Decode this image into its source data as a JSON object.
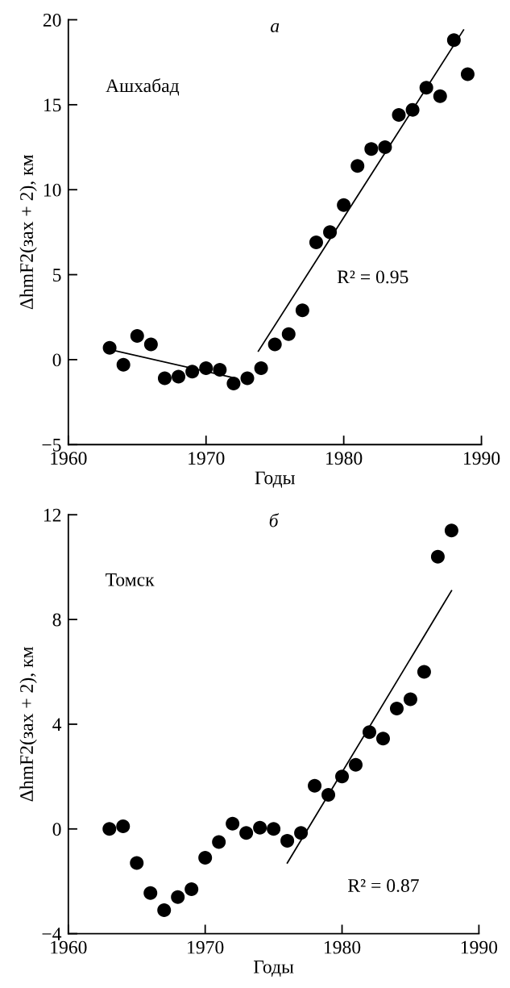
{
  "chart_data": [
    {
      "type": "scatter",
      "title": "а",
      "xlabel": "Годы",
      "ylabel": "ΔhmF2(зах + 2), км",
      "annotations": [
        "Ашхабад",
        "R² = 0.95"
      ],
      "xlim": [
        1960,
        1990
      ],
      "xticks": [
        1960,
        1970,
        1980,
        1990
      ],
      "ylim": [
        -5,
        20
      ],
      "yticks": [
        {
          "value": -5,
          "label": "−5"
        },
        0,
        5,
        10,
        15,
        20
      ],
      "grid": false,
      "legend": false,
      "series": [
        {
          "marker": "circle",
          "color": "#000000",
          "x": [
            1963,
            1964,
            1965,
            1966,
            1967,
            1968,
            1969,
            1970,
            1971,
            1972,
            1973,
            1974,
            1975,
            1976,
            1977,
            1978,
            1979,
            1980,
            1981,
            1982,
            1983,
            1984,
            1985,
            1986,
            1987,
            1988,
            1989
          ],
          "values": [
            0.7,
            -0.3,
            1.4,
            0.9,
            -1.1,
            -1.0,
            -0.7,
            -0.5,
            -0.6,
            -1.4,
            -1.1,
            -0.5,
            0.9,
            1.5,
            2.9,
            6.9,
            7.5,
            9.1,
            11.4,
            12.4,
            12.5,
            14.4,
            14.7,
            16.0,
            15.5,
            18.8,
            16.8
          ]
        },
        {
          "type": "line",
          "marker": "none",
          "color": "#000000",
          "x": [
            1963,
            1972.2
          ],
          "values": [
            0.6,
            -1.1
          ]
        },
        {
          "type": "line",
          "marker": "none",
          "color": "#000000",
          "x": [
            1973.8,
            1988.7
          ],
          "values": [
            0.5,
            19.4
          ]
        }
      ]
    },
    {
      "type": "scatter",
      "title": "б",
      "xlabel": "Годы",
      "ylabel": "ΔhmF2(зах + 2), км",
      "annotations": [
        "Томск",
        "R² = 0.87"
      ],
      "xlim": [
        1960,
        1990
      ],
      "xticks": [
        1960,
        1970,
        1980,
        1990
      ],
      "ylim": [
        -4,
        12
      ],
      "yticks": [
        {
          "value": -4,
          "label": "−4"
        },
        0,
        4,
        8,
        12
      ],
      "grid": false,
      "legend": false,
      "series": [
        {
          "marker": "circle",
          "color": "#000000",
          "x": [
            1963,
            1964,
            1965,
            1966,
            1967,
            1968,
            1969,
            1970,
            1971,
            1972,
            1973,
            1974,
            1975,
            1976,
            1977,
            1978,
            1979,
            1980,
            1981,
            1982,
            1983,
            1984,
            1985,
            1986,
            1987,
            1988
          ],
          "values": [
            0.0,
            0.1,
            -1.3,
            -2.45,
            -3.1,
            -2.6,
            -2.3,
            -1.1,
            -0.5,
            0.2,
            -0.15,
            0.05,
            0.0,
            -0.45,
            -0.15,
            1.65,
            1.3,
            2.0,
            2.45,
            3.7,
            3.45,
            4.6,
            4.95,
            6.0,
            10.4,
            11.4
          ]
        },
        {
          "type": "line",
          "marker": "none",
          "color": "#000000",
          "x": [
            1976.0,
            1988.0
          ],
          "values": [
            -1.3,
            9.1
          ]
        }
      ]
    }
  ]
}
